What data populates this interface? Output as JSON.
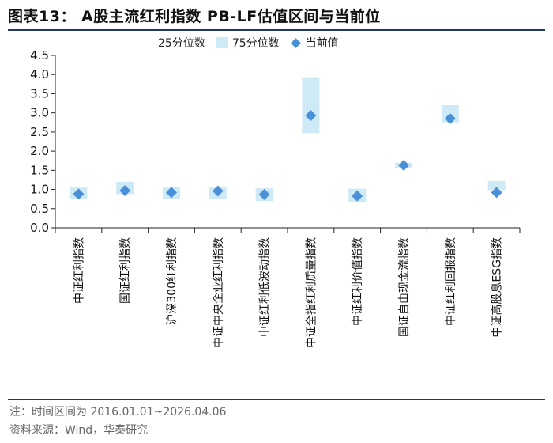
{
  "title": "图表13：  A股主流红利指数 PB-LF估值区间与当前位",
  "note": "注：时间区间为 2016.01.01~2026.04.06",
  "source": "资料来源：Wind，华泰研究",
  "chart_data": {
    "type": "range-band-with-marker",
    "ylim": [
      0,
      4.5
    ],
    "yticks": [
      "0.0",
      "0.5",
      "1.0",
      "1.5",
      "2.0",
      "2.5",
      "3.0",
      "3.5",
      "4.0",
      "4.5"
    ],
    "yticks_values": [
      0,
      0.5,
      1.0,
      1.5,
      2.0,
      2.5,
      3.0,
      3.5,
      4.0,
      4.5
    ],
    "categories": [
      "中证红利指数",
      "国证红利指数",
      "沪深300红利指数",
      "中证中央企业红利指数",
      "中证红利低波动指数",
      "中证全指红利质量指数",
      "中证红利价值指数",
      "国证自由现金流指数",
      "中证红利回报指数",
      "中证高股息ESG指数"
    ],
    "legend": [
      "25分位数",
      "75分位数",
      "当前值"
    ],
    "series": [
      {
        "name": "25分位数",
        "values": [
          0.75,
          0.88,
          0.76,
          0.75,
          0.7,
          2.47,
          0.68,
          1.55,
          2.75,
          0.98
        ]
      },
      {
        "name": "75分位数",
        "values": [
          1.05,
          1.2,
          1.05,
          1.05,
          1.03,
          3.93,
          1.02,
          1.7,
          3.2,
          1.22
        ]
      },
      {
        "name": "当前值",
        "values": [
          0.88,
          0.97,
          0.92,
          0.96,
          0.87,
          2.93,
          0.83,
          1.63,
          2.85,
          0.92
        ]
      }
    ],
    "colors": {
      "band": "#cfeaf7",
      "marker": "#4a90d9",
      "axis": "#222222"
    }
  }
}
